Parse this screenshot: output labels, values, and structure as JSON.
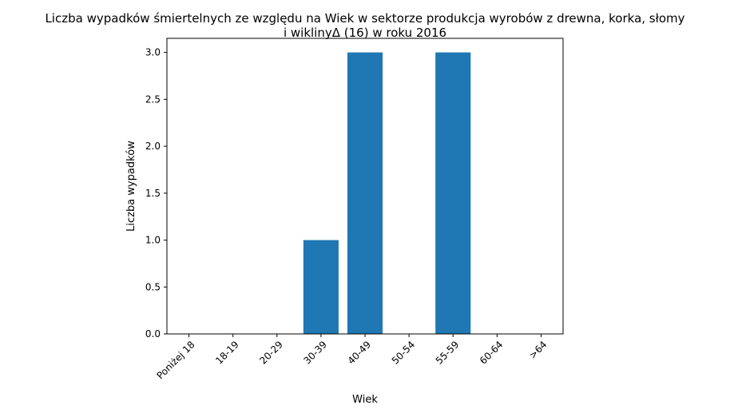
{
  "chart_data": {
    "type": "bar",
    "title": "Liczba wypadków śmiertelnych ze względu na Wiek w sektorze produkcja wyrobów z drewna, korka, słomy",
    "subtitle": "i wiklinyΔ (16)  w roku 2016",
    "xlabel": "Wiek",
    "ylabel": "Liczba wypadków",
    "categories": [
      "Poniżej 18",
      "18-19",
      "20-29",
      "30-39",
      "40-49",
      "50-54",
      "55-59",
      "60-64",
      ">64"
    ],
    "values": [
      0,
      0,
      0,
      1,
      3,
      0,
      3,
      0,
      0
    ],
    "ylim": [
      0,
      3.15
    ],
    "yticks": [
      "0.0",
      "0.5",
      "1.0",
      "1.5",
      "2.0",
      "2.5",
      "3.0"
    ],
    "bar_color": "#1f77b4",
    "grid": false,
    "legend": "none"
  }
}
